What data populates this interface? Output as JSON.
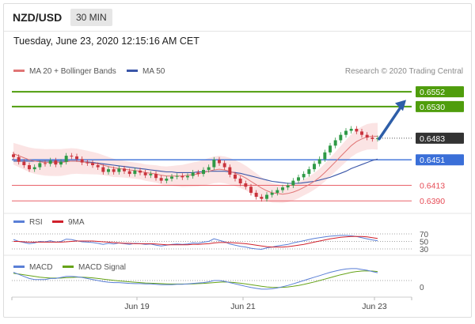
{
  "header": {
    "symbol": "NZD/USD",
    "timeframe": "30 MIN",
    "timestamp": "Tuesday, June 23, 2020 12:15:16 AM CET"
  },
  "legend": {
    "ma20": "MA 20 + Bollinger Bands",
    "ma50": "MA 50",
    "credit": "Research © 2020 Trading Central",
    "rsi": "RSI",
    "rsi_ma": "9MA",
    "macd": "MACD",
    "macd_signal": "MACD Signal"
  },
  "colors": {
    "resistance": "#4f9d0c",
    "pivot": "#3a6fd8",
    "support": "#e64b55",
    "current": "#333333",
    "ma20": "#e07575",
    "ma50": "#3a56a8",
    "band_fill": "#fbe1e1",
    "candle_up": "#2f9a46",
    "candle_down": "#c9343d",
    "arrow": "#2e5ea8",
    "rsi_line": "#5a7fd6",
    "rsi_ma_line": "#d0202b",
    "macd_line": "#5a7fd6",
    "signal_line": "#66a318"
  },
  "chart_data": [
    {
      "type": "candlestick",
      "pair": "NZD/USD",
      "timeframe": "30 MIN",
      "x_ticks": [
        "Jun 19",
        "Jun 21",
        "Jun 23"
      ],
      "ylim": [
        0.6375,
        0.6565
      ],
      "levels": [
        {
          "kind": "resistance",
          "value": 0.6552,
          "label": "0.6552"
        },
        {
          "kind": "resistance",
          "value": 0.653,
          "label": "0.6530"
        },
        {
          "kind": "current",
          "value": 0.6483,
          "label": "0.6483"
        },
        {
          "kind": "pivot",
          "value": 0.6451,
          "label": "0.6451"
        },
        {
          "kind": "support",
          "value": 0.6413,
          "label": "0.6413"
        },
        {
          "kind": "support",
          "value": 0.639,
          "label": "0.6390"
        }
      ],
      "forecast_arrow": {
        "from": 0.6482,
        "to": 0.654
      },
      "closes": [
        0.6455,
        0.6448,
        0.6443,
        0.6437,
        0.644,
        0.6446,
        0.6445,
        0.645,
        0.6444,
        0.6448,
        0.6457,
        0.6456,
        0.6452,
        0.6447,
        0.6446,
        0.6443,
        0.644,
        0.6433,
        0.6437,
        0.6433,
        0.6438,
        0.6434,
        0.643,
        0.6435,
        0.6432,
        0.6428,
        0.643,
        0.6424,
        0.642,
        0.6423,
        0.6426,
        0.6427,
        0.6425,
        0.6427,
        0.6432,
        0.643,
        0.6436,
        0.644,
        0.6451,
        0.6446,
        0.644,
        0.6429,
        0.6423,
        0.6416,
        0.6411,
        0.6402,
        0.6396,
        0.6393,
        0.6399,
        0.6402,
        0.6406,
        0.641,
        0.6413,
        0.642,
        0.6425,
        0.643,
        0.6437,
        0.6445,
        0.6452,
        0.6462,
        0.6472,
        0.648,
        0.6488,
        0.6494,
        0.6497,
        0.6493,
        0.6488,
        0.6484,
        0.6482,
        0.6483
      ],
      "ma20": [
        0.646,
        0.6457,
        0.6454,
        0.6451,
        0.6449,
        0.6448,
        0.6447,
        0.6447,
        0.6447,
        0.6447,
        0.6448,
        0.6449,
        0.6449,
        0.6448,
        0.6447,
        0.6446,
        0.6445,
        0.6443,
        0.6441,
        0.6439,
        0.6438,
        0.6437,
        0.6436,
        0.6435,
        0.6434,
        0.6432,
        0.6431,
        0.643,
        0.6428,
        0.6427,
        0.6427,
        0.6427,
        0.6427,
        0.6428,
        0.6429,
        0.643,
        0.6432,
        0.6434,
        0.6436,
        0.6437,
        0.6436,
        0.6434,
        0.6431,
        0.6428,
        0.6424,
        0.6419,
        0.6414,
        0.6409,
        0.6405,
        0.6402,
        0.6401,
        0.64,
        0.6401,
        0.6403,
        0.6406,
        0.641,
        0.6414,
        0.6419,
        0.6425,
        0.6432,
        0.644,
        0.6448,
        0.6456,
        0.6464,
        0.6472,
        0.6478,
        0.6482,
        0.6485,
        0.6486,
        0.6486
      ],
      "ma50": [
        0.6449,
        0.6449,
        0.6449,
        0.6449,
        0.6449,
        0.6449,
        0.6449,
        0.6449,
        0.6449,
        0.6449,
        0.6449,
        0.6449,
        0.6449,
        0.6448,
        0.6448,
        0.6447,
        0.6446,
        0.6445,
        0.6444,
        0.6443,
        0.6442,
        0.6441,
        0.644,
        0.6439,
        0.6438,
        0.6437,
        0.6436,
        0.6435,
        0.6434,
        0.6433,
        0.6433,
        0.6432,
        0.6432,
        0.6432,
        0.6432,
        0.6433,
        0.6433,
        0.6434,
        0.6434,
        0.6434,
        0.6434,
        0.6433,
        0.6432,
        0.6431,
        0.6429,
        0.6427,
        0.6425,
        0.6423,
        0.6421,
        0.6419,
        0.6418,
        0.6417,
        0.6416,
        0.6416,
        0.6416,
        0.6417,
        0.6418,
        0.6419,
        0.6421,
        0.6423,
        0.6425,
        0.6428,
        0.6431,
        0.6434,
        0.6438,
        0.6441,
        0.6444,
        0.6447,
        0.645,
        0.6452
      ]
    },
    {
      "type": "line",
      "name": "RSI",
      "ylim": [
        30,
        70
      ],
      "y_ticks": [
        "70",
        "50",
        "30"
      ],
      "series": [
        {
          "name": "RSI",
          "values": [
            55,
            50,
            47,
            44,
            46,
            50,
            49,
            52,
            48,
            50,
            56,
            55,
            52,
            49,
            48,
            47,
            45,
            42,
            45,
            43,
            46,
            44,
            42,
            45,
            44,
            42,
            43,
            40,
            38,
            40,
            42,
            43,
            42,
            43,
            46,
            45,
            48,
            50,
            57,
            53,
            49,
            43,
            40,
            37,
            35,
            32,
            30,
            29,
            33,
            35,
            38,
            40,
            42,
            46,
            49,
            52,
            55,
            58,
            60,
            62,
            64,
            65,
            66,
            66,
            65,
            63,
            60,
            57,
            54,
            52
          ]
        },
        {
          "name": "9MA",
          "values": [
            50,
            50,
            49,
            48,
            48,
            48,
            48,
            48,
            48,
            48,
            49,
            50,
            51,
            51,
            51,
            51,
            50,
            49,
            48,
            47,
            46,
            45,
            45,
            44,
            44,
            44,
            44,
            43,
            42,
            41,
            41,
            41,
            41,
            41,
            42,
            42,
            43,
            44,
            46,
            47,
            47,
            47,
            46,
            45,
            44,
            42,
            40,
            38,
            36,
            35,
            35,
            35,
            36,
            38,
            40,
            42,
            45,
            48,
            51,
            54,
            57,
            59,
            61,
            62,
            63,
            63,
            63,
            62,
            60,
            58
          ]
        }
      ]
    },
    {
      "type": "line",
      "name": "MACD",
      "y_ticks": [
        "0"
      ],
      "series": [
        {
          "name": "MACD",
          "values": [
            4,
            3,
            2,
            1,
            0.5,
            0.5,
            0.5,
            1,
            1,
            1.5,
            2,
            2,
            1.8,
            1.5,
            1,
            0.5,
            0,
            -0.5,
            -0.8,
            -1,
            -1,
            -1.2,
            -1.4,
            -1.5,
            -1.5,
            -1.6,
            -1.6,
            -1.8,
            -2,
            -2,
            -2,
            -1.8,
            -1.8,
            -1.6,
            -1.4,
            -1.2,
            -1,
            -0.6,
            0,
            0,
            -0.4,
            -1,
            -1.6,
            -2.2,
            -2.8,
            -3.4,
            -3.8,
            -4.2,
            -4.2,
            -4,
            -3.6,
            -3,
            -2.4,
            -1.6,
            -0.8,
            0,
            0.8,
            1.6,
            2.4,
            3.2,
            4,
            4.6,
            5.2,
            5.6,
            5.8,
            5.8,
            5.4,
            5,
            4.4,
            3.8
          ]
        },
        {
          "name": "MACD Signal",
          "values": [
            3.5,
            3.2,
            2.8,
            2.4,
            2,
            1.6,
            1.4,
            1.2,
            1.2,
            1.2,
            1.4,
            1.5,
            1.6,
            1.6,
            1.5,
            1.3,
            1,
            0.7,
            0.4,
            0.1,
            -0.2,
            -0.4,
            -0.6,
            -0.8,
            -1,
            -1.2,
            -1.3,
            -1.4,
            -1.5,
            -1.6,
            -1.7,
            -1.7,
            -1.7,
            -1.7,
            -1.6,
            -1.5,
            -1.4,
            -1.2,
            -1,
            -0.8,
            -0.7,
            -0.8,
            -1,
            -1.3,
            -1.6,
            -2,
            -2.4,
            -2.8,
            -3.1,
            -3.3,
            -3.4,
            -3.3,
            -3.1,
            -2.8,
            -2.4,
            -1.9,
            -1.3,
            -0.7,
            0,
            0.7,
            1.4,
            2.1,
            2.8,
            3.4,
            4,
            4.4,
            4.6,
            4.7,
            4.6,
            4.4
          ]
        }
      ]
    }
  ]
}
